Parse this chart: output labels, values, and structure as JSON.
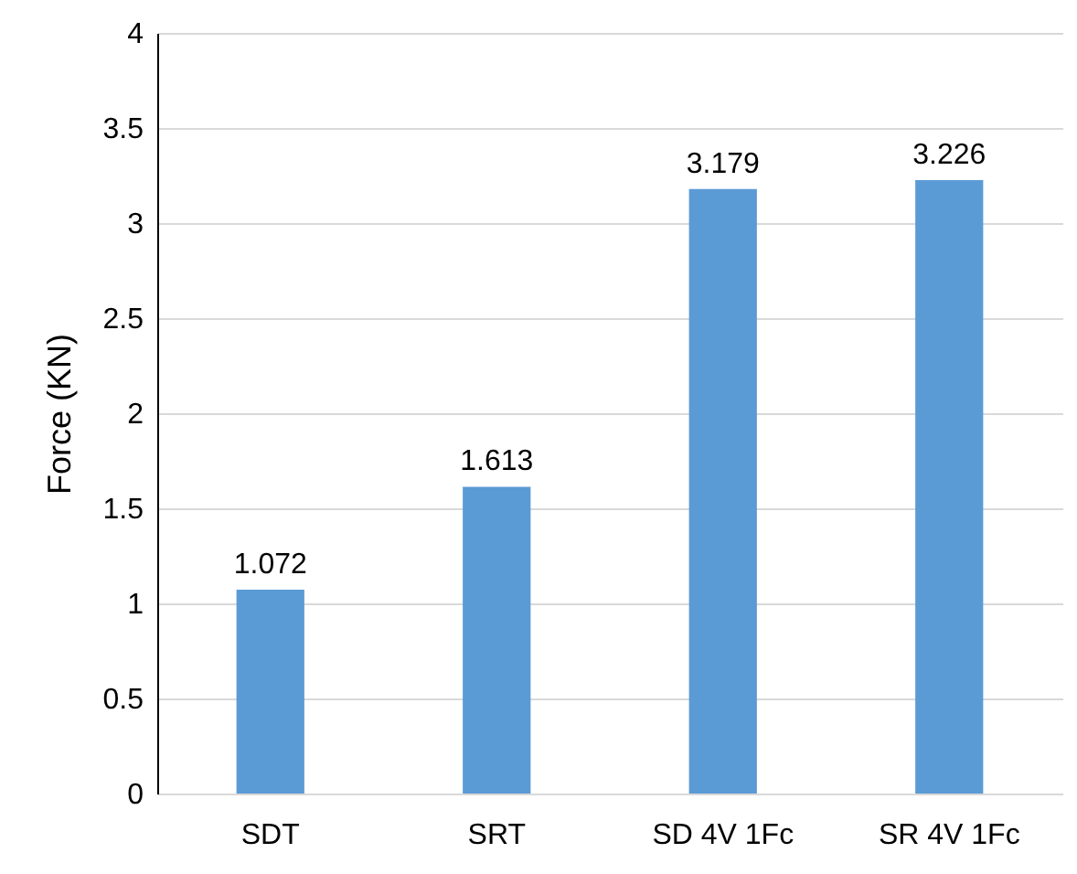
{
  "chart_data": {
    "type": "bar",
    "ylabel": "Force (KN)",
    "categories": [
      "SDT",
      "SRT",
      "SD 4V 1Fc",
      "SR 4V 1Fc"
    ],
    "values": [
      1.072,
      1.613,
      3.179,
      3.226
    ],
    "color": "#5b9bd5",
    "ylim": [
      0,
      4
    ],
    "yticks": [
      0,
      0.5,
      1,
      1.5,
      2,
      2.5,
      3,
      3.5,
      4
    ],
    "grid": "y",
    "data_labels": true
  }
}
